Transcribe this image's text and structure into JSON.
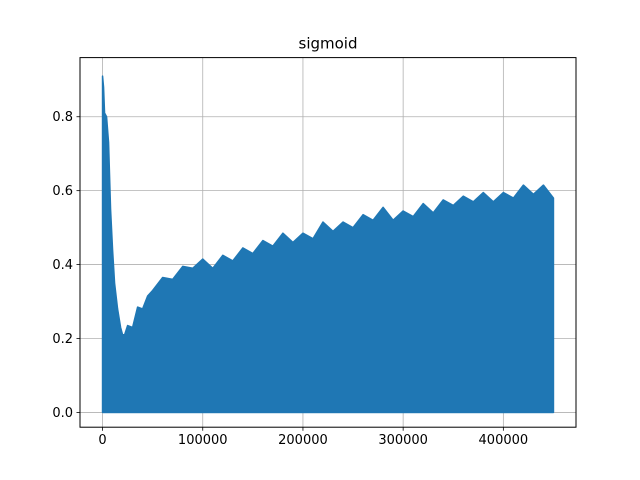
{
  "chart_data": {
    "type": "line",
    "title": "sigmoid",
    "xlabel": "",
    "ylabel": "",
    "xlim": [
      -22500,
      472500
    ],
    "ylim": [
      -0.04,
      0.96
    ],
    "xticks": [
      0,
      100000,
      200000,
      300000,
      400000
    ],
    "xtick_labels": [
      "0",
      "100000",
      "200000",
      "300000",
      "400000"
    ],
    "yticks": [
      0.0,
      0.2,
      0.4,
      0.6,
      0.8
    ],
    "ytick_labels": [
      "0.0",
      "0.2",
      "0.4",
      "0.6",
      "0.8"
    ],
    "grid": true,
    "series": [
      {
        "color": "#1f77b4",
        "min_value": 0.0,
        "envelope": {
          "x": [
            0,
            1000,
            2000,
            4000,
            6000,
            8000,
            10000,
            12000,
            15000,
            18000,
            20000,
            22000,
            25000,
            30000,
            35000,
            40000,
            45000,
            50000,
            60000,
            70000,
            80000,
            90000,
            100000,
            110000,
            120000,
            130000,
            140000,
            150000,
            160000,
            170000,
            180000,
            190000,
            200000,
            210000,
            220000,
            230000,
            240000,
            250000,
            260000,
            270000,
            280000,
            290000,
            300000,
            310000,
            320000,
            330000,
            340000,
            350000,
            360000,
            370000,
            380000,
            390000,
            400000,
            410000,
            420000,
            430000,
            440000,
            450000
          ],
          "y": [
            0.91,
            0.88,
            0.81,
            0.8,
            0.73,
            0.55,
            0.44,
            0.35,
            0.28,
            0.23,
            0.21,
            0.22,
            0.22,
            0.24,
            0.27,
            0.29,
            0.3,
            0.34,
            0.35,
            0.37,
            0.38,
            0.4,
            0.4,
            0.4,
            0.41,
            0.42,
            0.43,
            0.44,
            0.45,
            0.46,
            0.47,
            0.47,
            0.47,
            0.48,
            0.5,
            0.5,
            0.5,
            0.51,
            0.52,
            0.53,
            0.54,
            0.53,
            0.53,
            0.54,
            0.55,
            0.55,
            0.56,
            0.57,
            0.57,
            0.58,
            0.58,
            0.58,
            0.58,
            0.59,
            0.6,
            0.6,
            0.6,
            0.59
          ]
        }
      }
    ]
  }
}
